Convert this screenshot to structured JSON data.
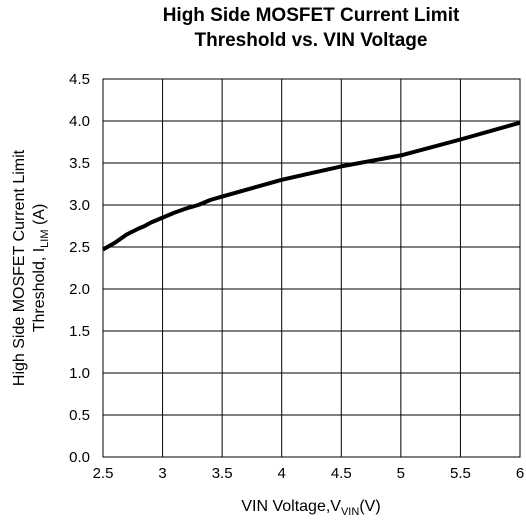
{
  "chart_data": {
    "type": "line",
    "title_line1": "High Side MOSFET Current Limit",
    "title_line2": "Threshold vs. VIN Voltage",
    "xlabel": {
      "main": "VIN Voltage,V",
      "sub": "VIN",
      "suffix": "(V)"
    },
    "ylabel": {
      "line1": "High Side MOSFET Current Limit",
      "line2_main": "Threshold, I",
      "line2_sub": "LIM",
      "line2_suffix": " (A)"
    },
    "xlim": [
      2.5,
      6
    ],
    "ylim": [
      0,
      4.5
    ],
    "x_ticks": [
      "2.5",
      "3",
      "3.5",
      "4",
      "4.5",
      "5",
      "5.5",
      "6"
    ],
    "y_ticks": [
      "0.0",
      "0.5",
      "1.0",
      "1.5",
      "2.0",
      "2.5",
      "3.0",
      "3.5",
      "4.0",
      "4.5"
    ],
    "grid": true,
    "series": [
      {
        "x": [
          2.5,
          2.6,
          2.7,
          2.8,
          2.85,
          2.9,
          3.0,
          3.1,
          3.2,
          3.3,
          3.4,
          3.5,
          3.75,
          4.0,
          4.25,
          4.5,
          5.0,
          5.5,
          6.0
        ],
        "y": [
          2.47,
          2.55,
          2.65,
          2.72,
          2.75,
          2.79,
          2.85,
          2.91,
          2.96,
          3.0,
          3.06,
          3.1,
          3.2,
          3.3,
          3.38,
          3.46,
          3.59,
          3.78,
          3.98
        ]
      }
    ]
  }
}
